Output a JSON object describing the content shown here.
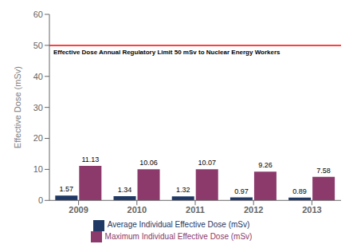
{
  "chart_data": {
    "type": "bar",
    "categories": [
      "2009",
      "2010",
      "2011",
      "2012",
      "2013"
    ],
    "series": [
      {
        "name": "Average Individual Effective Dose (mSv)",
        "color": "#1F3864",
        "values": [
          1.57,
          1.34,
          1.32,
          0.97,
          0.89
        ]
      },
      {
        "name": "Maximum Individual Effective Dose (mSv)",
        "color": "#8B3A6B",
        "values": [
          11.13,
          10.06,
          10.07,
          9.26,
          7.58
        ]
      }
    ],
    "ylabel": "Effective Dose (mSv)",
    "ylim": [
      0,
      60
    ],
    "yticks": [
      0,
      10,
      20,
      30,
      40,
      50,
      60
    ],
    "reference_line": {
      "y": 50,
      "color": "#FF0000",
      "label": "Effective Dose Annual Regulatory Limit 50 mSv to Nuclear Energy Workers"
    },
    "grid": false,
    "data_labels": true,
    "legend": "bottom"
  }
}
